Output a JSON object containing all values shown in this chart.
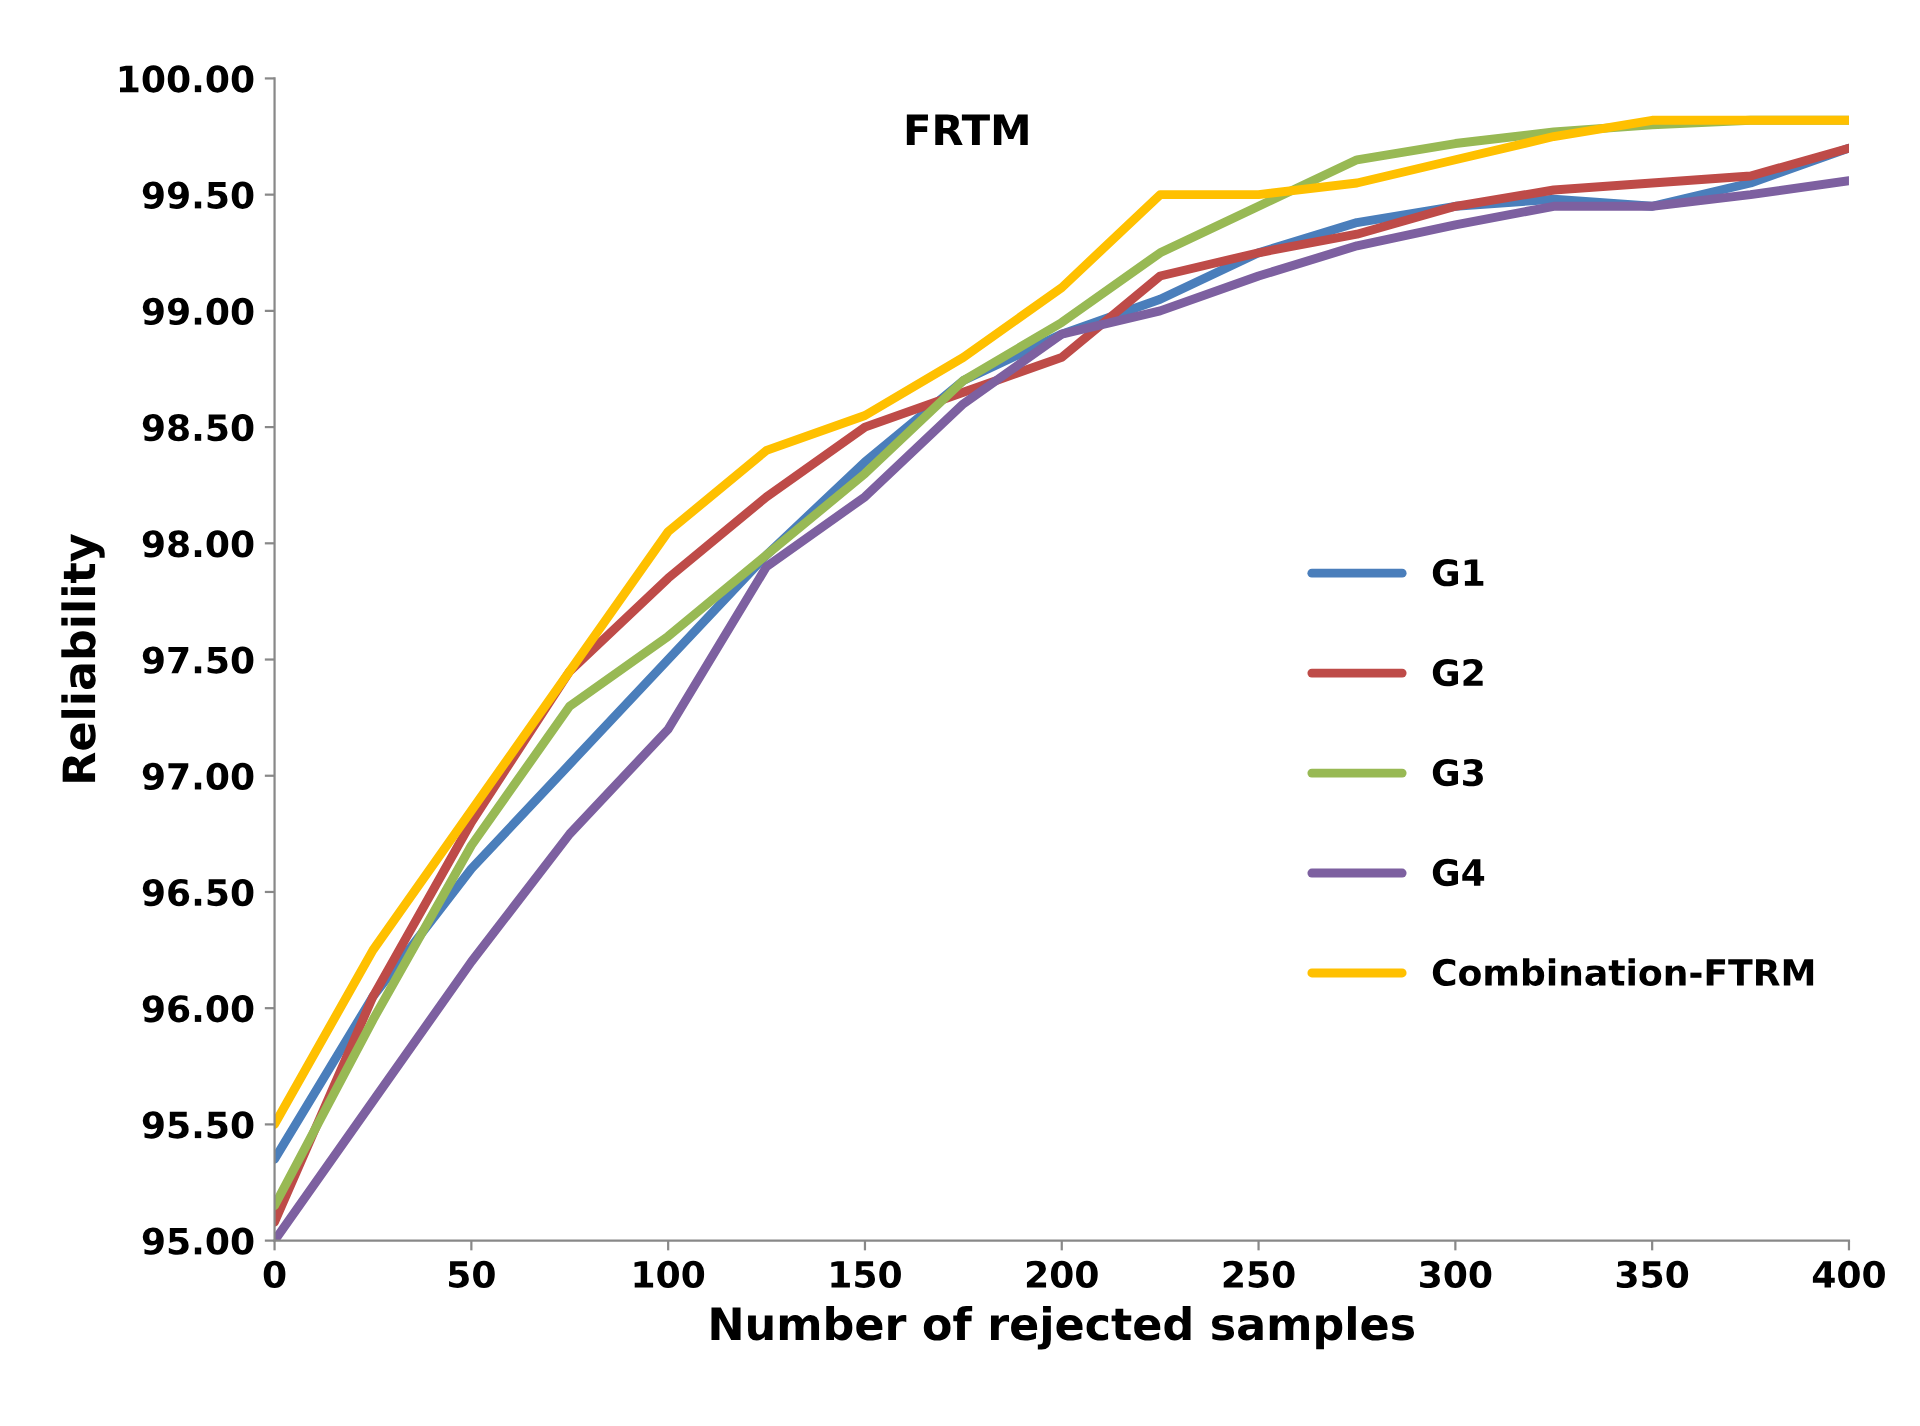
{
  "chart_data": {
    "type": "line",
    "title": "FRTM",
    "xlabel": "Number of rejected samples",
    "ylabel": "Reliability",
    "x": [
      0,
      25,
      50,
      75,
      100,
      125,
      150,
      175,
      200,
      225,
      250,
      275,
      300,
      325,
      350,
      375,
      400
    ],
    "series": [
      {
        "name": "G1",
        "color": "#4a7ebb",
        "values": [
          95.35,
          96.05,
          96.6,
          97.05,
          97.5,
          97.95,
          98.35,
          98.7,
          98.9,
          99.05,
          99.25,
          99.38,
          99.45,
          99.48,
          99.45,
          99.55,
          99.7
        ]
      },
      {
        "name": "G2",
        "color": "#be4b48",
        "values": [
          95.08,
          96.05,
          96.8,
          97.45,
          97.85,
          98.2,
          98.5,
          98.65,
          98.8,
          99.15,
          99.25,
          99.33,
          99.45,
          99.52,
          99.55,
          99.58,
          99.7
        ]
      },
      {
        "name": "G3",
        "color": "#98b954",
        "values": [
          95.15,
          95.95,
          96.7,
          97.3,
          97.6,
          97.95,
          98.3,
          98.7,
          98.95,
          99.25,
          99.45,
          99.65,
          99.72,
          99.77,
          99.8,
          99.82,
          99.82
        ]
      },
      {
        "name": "G4",
        "color": "#7d60a0",
        "values": [
          95.0,
          95.6,
          96.2,
          96.75,
          97.2,
          97.9,
          98.2,
          98.6,
          98.9,
          99.0,
          99.15,
          99.28,
          99.37,
          99.45,
          99.45,
          99.5,
          99.56
        ]
      },
      {
        "name": "Combination-FTRM",
        "color": "#ffc000",
        "values": [
          95.5,
          96.25,
          96.85,
          97.45,
          98.05,
          98.4,
          98.55,
          98.8,
          99.1,
          99.5,
          99.5,
          99.55,
          99.65,
          99.75,
          99.82,
          99.82,
          99.82
        ]
      }
    ],
    "xlim": [
      0,
      400
    ],
    "xticks": [
      0,
      50,
      100,
      150,
      200,
      250,
      300,
      350,
      400
    ],
    "ylim": [
      95,
      100
    ],
    "yticks": [
      {
        "value": 95,
        "label": "95.00"
      },
      {
        "value": 95.5,
        "label": "95.50"
      },
      {
        "value": 96,
        "label": "96.00"
      },
      {
        "value": 96.5,
        "label": "96.50"
      },
      {
        "value": 97,
        "label": "97.00"
      },
      {
        "value": 97.5,
        "label": "97.50"
      },
      {
        "value": 98,
        "label": "98.00"
      },
      {
        "value": 98.5,
        "label": "98.50"
      },
      {
        "value": 99,
        "label": "99.00"
      },
      {
        "value": 99.5,
        "label": "99.50"
      },
      {
        "value": 100,
        "label": "100.00"
      }
    ],
    "legend": "right",
    "grid": false,
    "marker": "none",
    "line_style": "solid"
  }
}
